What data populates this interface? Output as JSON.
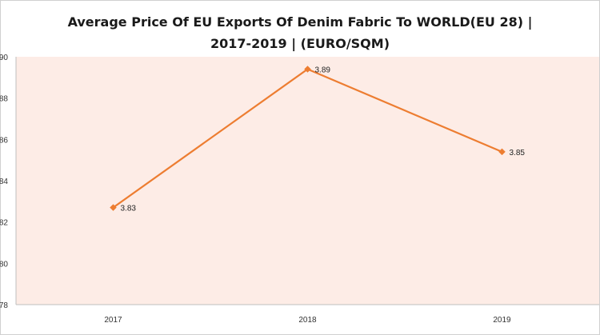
{
  "chart_data": {
    "type": "line",
    "title_line1": "Average Price Of EU Exports Of Denim Fabric To WORLD(EU 28) |",
    "title_line2": "2017-2019 | (EURO/SQM)",
    "xlabel": "",
    "ylabel": "",
    "categories": [
      "2017",
      "2018",
      "2019"
    ],
    "series": [
      {
        "values": [
          3.827,
          3.894,
          3.854
        ],
        "labels": [
          "3.83",
          "3.89",
          "3.85"
        ]
      }
    ],
    "ylim": [
      3.78,
      3.9
    ],
    "y_ticks": [
      3.78,
      3.8,
      3.82,
      3.84,
      3.86,
      3.88,
      3.9
    ],
    "y_tick_labels": [
      "78",
      "80",
      "82",
      "84",
      "86",
      "88",
      "90"
    ],
    "grid": false,
    "plot_area_color": "#fdece6",
    "line_color": "#ed7d31"
  }
}
